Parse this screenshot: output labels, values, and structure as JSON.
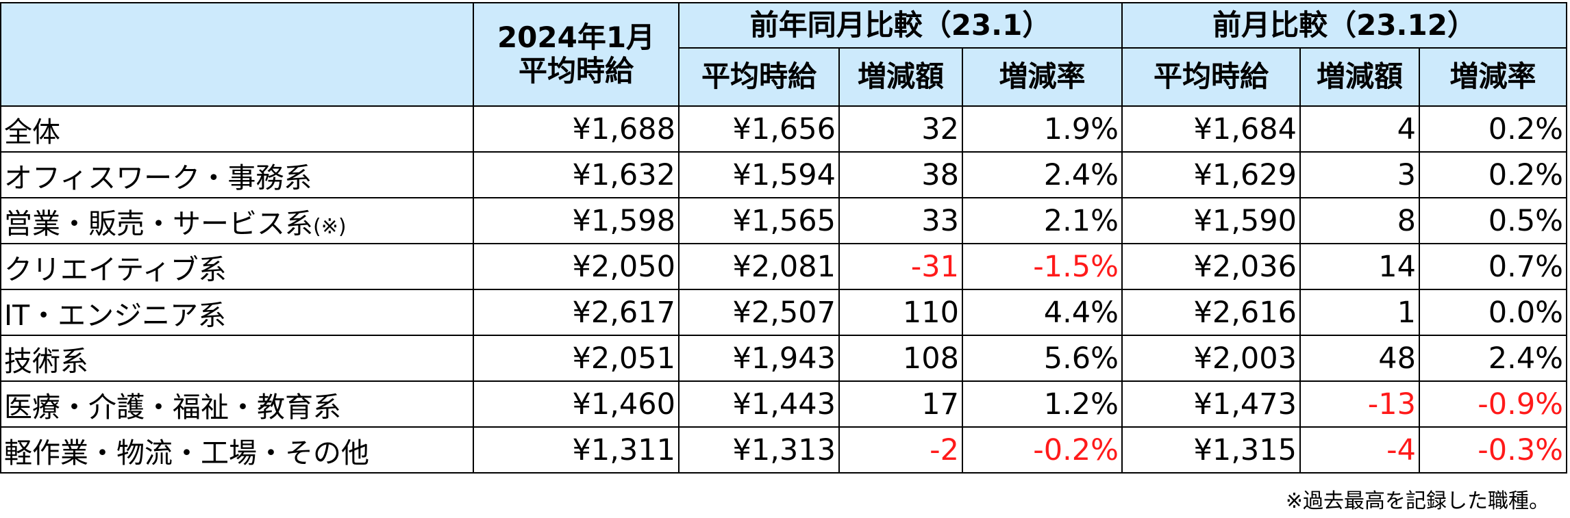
{
  "header": {
    "current_month": "2024年1月",
    "current_month_sub": "平均時給",
    "yoy_group": "前年同月比較（23.1）",
    "mom_group": "前月比較（23.12）",
    "col_avg": "平均時給",
    "col_diff": "増減額",
    "col_rate": "増減率"
  },
  "rows": [
    {
      "category": "全体",
      "note": "",
      "cur": "¥1,688",
      "yoy_avg": "¥1,656",
      "yoy_diff": "32",
      "yoy_rate": "1.9%",
      "mom_avg": "¥1,684",
      "mom_diff": "4",
      "mom_rate": "0.2%"
    },
    {
      "category": "オフィスワーク・事務系",
      "note": "",
      "cur": "¥1,632",
      "yoy_avg": "¥1,594",
      "yoy_diff": "38",
      "yoy_rate": "2.4%",
      "mom_avg": "¥1,629",
      "mom_diff": "3",
      "mom_rate": "0.2%"
    },
    {
      "category": "営業・販売・サービス系",
      "note": "(※)",
      "cur": "¥1,598",
      "yoy_avg": "¥1,565",
      "yoy_diff": "33",
      "yoy_rate": "2.1%",
      "mom_avg": "¥1,590",
      "mom_diff": "8",
      "mom_rate": "0.5%"
    },
    {
      "category": "クリエイティブ系",
      "note": "",
      "cur": "¥2,050",
      "yoy_avg": "¥2,081",
      "yoy_diff": "-31",
      "yoy_rate": "-1.5%",
      "mom_avg": "¥2,036",
      "mom_diff": "14",
      "mom_rate": "0.7%"
    },
    {
      "category": "IT・エンジニア系",
      "note": "",
      "cur": "¥2,617",
      "yoy_avg": "¥2,507",
      "yoy_diff": "110",
      "yoy_rate": "4.4%",
      "mom_avg": "¥2,616",
      "mom_diff": "1",
      "mom_rate": "0.0%"
    },
    {
      "category": "技術系",
      "note": "",
      "cur": "¥2,051",
      "yoy_avg": "¥1,943",
      "yoy_diff": "108",
      "yoy_rate": "5.6%",
      "mom_avg": "¥2,003",
      "mom_diff": "48",
      "mom_rate": "2.4%"
    },
    {
      "category": "医療・介護・福祉・教育系",
      "note": "",
      "cur": "¥1,460",
      "yoy_avg": "¥1,443",
      "yoy_diff": "17",
      "yoy_rate": "1.2%",
      "mom_avg": "¥1,473",
      "mom_diff": "-13",
      "mom_rate": "-0.9%"
    },
    {
      "category": "軽作業・物流・工場・その他",
      "note": "",
      "cur": "¥1,311",
      "yoy_avg": "¥1,313",
      "yoy_diff": "-2",
      "yoy_rate": "-0.2%",
      "mom_avg": "¥1,315",
      "mom_diff": "-4",
      "mom_rate": "-0.3%"
    }
  ],
  "footnote": "※過去最高を記録した職種。",
  "colors": {
    "header_bg": "#cdeafc",
    "negative": "#ff1a1a",
    "border": "#000000"
  }
}
